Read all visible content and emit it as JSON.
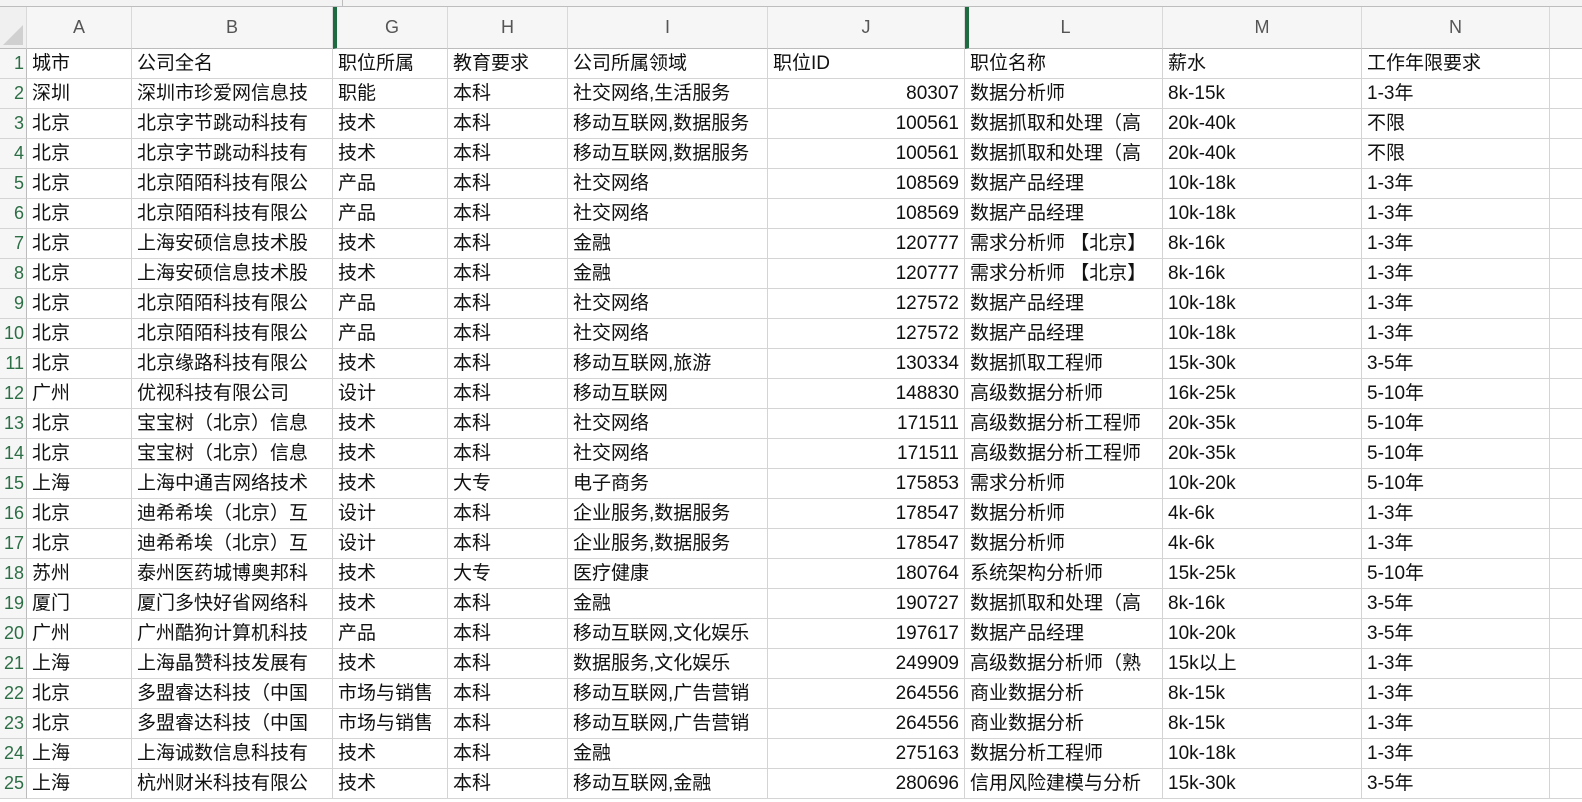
{
  "columns": [
    "A",
    "B",
    "G",
    "H",
    "I",
    "J",
    "L",
    "M",
    "N",
    ""
  ],
  "header_row": [
    "城市",
    "公司全名",
    "职位所属",
    "教育要求",
    "公司所属领域",
    "职位ID",
    "职位名称",
    "薪水",
    "工作年限要求"
  ],
  "rows": [
    [
      "深圳",
      "深圳市珍爱网信息技",
      "职能",
      "本科",
      "社交网络,生活服务",
      "80307",
      "数据分析师",
      "8k-15k",
      "1-3年"
    ],
    [
      "北京",
      "北京字节跳动科技有",
      "技术",
      "本科",
      "移动互联网,数据服务",
      "100561",
      "数据抓取和处理（高",
      "20k-40k",
      "不限"
    ],
    [
      "北京",
      "北京字节跳动科技有",
      "技术",
      "本科",
      "移动互联网,数据服务",
      "100561",
      "数据抓取和处理（高",
      "20k-40k",
      "不限"
    ],
    [
      "北京",
      "北京陌陌科技有限公",
      "产品",
      "本科",
      "社交网络",
      "108569",
      "数据产品经理",
      "10k-18k",
      "1-3年"
    ],
    [
      "北京",
      "北京陌陌科技有限公",
      "产品",
      "本科",
      "社交网络",
      "108569",
      "数据产品经理",
      "10k-18k",
      "1-3年"
    ],
    [
      "北京",
      "上海安硕信息技术股",
      "技术",
      "本科",
      "金融",
      "120777",
      "需求分析师 【北京】",
      "8k-16k",
      "1-3年"
    ],
    [
      "北京",
      "上海安硕信息技术股",
      "技术",
      "本科",
      "金融",
      "120777",
      "需求分析师 【北京】",
      "8k-16k",
      "1-3年"
    ],
    [
      "北京",
      "北京陌陌科技有限公",
      "产品",
      "本科",
      "社交网络",
      "127572",
      "数据产品经理",
      "10k-18k",
      "1-3年"
    ],
    [
      "北京",
      "北京陌陌科技有限公",
      "产品",
      "本科",
      "社交网络",
      "127572",
      "数据产品经理",
      "10k-18k",
      "1-3年"
    ],
    [
      "北京",
      "北京缘路科技有限公",
      "技术",
      "本科",
      "移动互联网,旅游",
      "130334",
      "数据抓取工程师",
      "15k-30k",
      "3-5年"
    ],
    [
      "广州",
      "优视科技有限公司",
      "设计",
      "本科",
      "移动互联网",
      "148830",
      "高级数据分析师",
      "16k-25k",
      "5-10年"
    ],
    [
      "北京",
      "宝宝树（北京）信息",
      "技术",
      "本科",
      "社交网络",
      "171511",
      "高级数据分析工程师",
      "20k-35k",
      "5-10年"
    ],
    [
      "北京",
      "宝宝树（北京）信息",
      "技术",
      "本科",
      "社交网络",
      "171511",
      "高级数据分析工程师",
      "20k-35k",
      "5-10年"
    ],
    [
      "上海",
      "上海中通吉网络技术",
      "技术",
      "大专",
      "电子商务",
      "175853",
      "需求分析师",
      "10k-20k",
      "5-10年"
    ],
    [
      "北京",
      "迪希希埃（北京）互",
      "设计",
      "本科",
      "企业服务,数据服务",
      "178547",
      "数据分析师",
      "4k-6k",
      "1-3年"
    ],
    [
      "北京",
      "迪希希埃（北京）互",
      "设计",
      "本科",
      "企业服务,数据服务",
      "178547",
      "数据分析师",
      "4k-6k",
      "1-3年"
    ],
    [
      "苏州",
      "泰州医药城博奥邦科",
      "技术",
      "大专",
      "医疗健康",
      "180764",
      "系统架构分析师",
      "15k-25k",
      "5-10年"
    ],
    [
      "厦门",
      "厦门多快好省网络科",
      "技术",
      "本科",
      "金融",
      "190727",
      "数据抓取和处理（高",
      "8k-16k",
      "3-5年"
    ],
    [
      "广州",
      "广州酷狗计算机科技",
      "产品",
      "本科",
      "移动互联网,文化娱乐",
      "197617",
      "数据产品经理",
      "10k-20k",
      "3-5年"
    ],
    [
      "上海",
      "上海晶赞科技发展有",
      "技术",
      "本科",
      "数据服务,文化娱乐",
      "249909",
      "高级数据分析师（熟",
      "15k以上",
      "1-3年"
    ],
    [
      "北京",
      "多盟睿达科技（中国",
      "市场与销售",
      "本科",
      "移动互联网,广告营销",
      "264556",
      "商业数据分析",
      "8k-15k",
      "1-3年"
    ],
    [
      "北京",
      "多盟睿达科技（中国",
      "市场与销售",
      "本科",
      "移动互联网,广告营销",
      "264556",
      "商业数据分析",
      "8k-15k",
      "1-3年"
    ],
    [
      "上海",
      "上海诚数信息科技有",
      "技术",
      "本科",
      "金融",
      "275163",
      "数据分析工程师",
      "10k-18k",
      "1-3年"
    ],
    [
      "上海",
      "杭州财米科技有限公",
      "技术",
      "本科",
      "移动互联网,金融",
      "280696",
      "信用风险建模与分析",
      "15k-30k",
      "3-5年"
    ]
  ],
  "row_numbers": [
    "1",
    "2",
    "3",
    "4",
    "5",
    "6",
    "7",
    "8",
    "9",
    "10",
    "11",
    "12",
    "13",
    "14",
    "15",
    "16",
    "17",
    "18",
    "19",
    "20",
    "21",
    "22",
    "23",
    "24",
    "25"
  ],
  "numeric_columns": [
    5
  ],
  "hidden_column_markers": [
    "G",
    "L"
  ],
  "colors": {
    "row_number_text": "#2c6e45",
    "hidden_marker": "#1e6b41",
    "gridline": "#d4d4d4"
  }
}
